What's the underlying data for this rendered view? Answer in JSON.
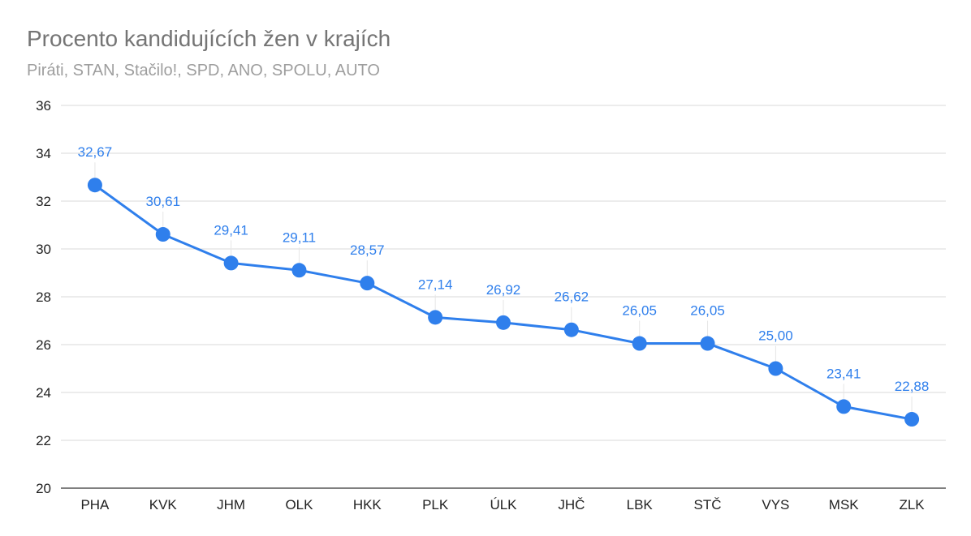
{
  "chart_data": {
    "type": "line",
    "title": "Procento kandidujících žen v krajích",
    "subtitle": "Piráti, STAN, Stačilo!, SPD, ANO, SPOLU, AUTO",
    "xlabel": "",
    "ylabel": "",
    "categories": [
      "PHA",
      "KVK",
      "JHM",
      "OLK",
      "HKK",
      "PLK",
      "ÚLK",
      "JHČ",
      "LBK",
      "STČ",
      "VYS",
      "MSK",
      "ZLK"
    ],
    "values": [
      32.67,
      30.61,
      29.41,
      29.11,
      28.57,
      27.14,
      26.92,
      26.62,
      26.05,
      26.05,
      25.0,
      23.41,
      22.88
    ],
    "data_labels": [
      "32,67",
      "30,61",
      "29,41",
      "29,11",
      "28,57",
      "27,14",
      "26,92",
      "26,62",
      "26,05",
      "26,05",
      "25,00",
      "23,41",
      "22,88"
    ],
    "ylim": [
      20,
      36
    ],
    "yticks": [
      "20",
      "22",
      "24",
      "26",
      "28",
      "30",
      "32",
      "34",
      "36"
    ],
    "grid": true,
    "legend": "none",
    "colors": {
      "series": "#2f7fec",
      "grid": "#d9d9d9",
      "axis": "#333333",
      "leader": "#e6e6e6"
    }
  }
}
